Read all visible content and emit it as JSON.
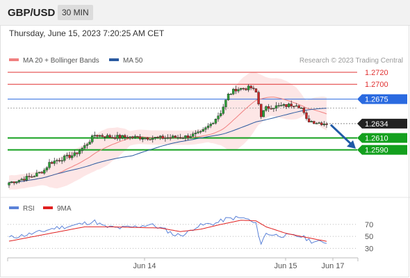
{
  "header": {
    "symbol": "GBP/USD",
    "timeframe": "30 MIN"
  },
  "datetime": "Thursday, June 15, 2023 7:20:25 AM CET",
  "chart_data": [
    {
      "type": "candlestick",
      "legend": [
        {
          "name": "MA 20 + Bollinger Bands",
          "color": "#f08080"
        },
        {
          "name": "MA 50",
          "color": "#2a5aa0"
        }
      ],
      "legend_placement": "top-left",
      "source": "Research © 2023 Trading Central",
      "x_ticks": [
        "Jun 14",
        "Jun 15",
        "Jun 17"
      ],
      "ylim": [
        1.2515,
        1.2755
      ],
      "current_price": "1.2634",
      "levels": [
        {
          "label": "1.2720",
          "value": 1.272,
          "color": "#e03030",
          "style": "line"
        },
        {
          "label": "1.2700",
          "value": 1.27,
          "color": "#e03030",
          "style": "line"
        },
        {
          "label": "1.2675",
          "value": 1.2675,
          "color": "#2a6ae0",
          "style": "fill"
        },
        {
          "label": "1.2610",
          "value": 1.261,
          "color": "#13a01e",
          "style": "fill"
        },
        {
          "label": "1.2590",
          "value": 1.259,
          "color": "#13a01e",
          "style": "fill"
        }
      ],
      "projection": {
        "from": 1.2632,
        "to": 1.2592,
        "color": "#1f5aa6"
      },
      "close_anchors": [
        [
          0,
          1.2535
        ],
        [
          6,
          1.2542
        ],
        [
          10,
          1.2547
        ],
        [
          14,
          1.2556
        ],
        [
          16,
          1.2568
        ],
        [
          20,
          1.2574
        ],
        [
          26,
          1.2582
        ],
        [
          30,
          1.2596
        ],
        [
          34,
          1.2615
        ],
        [
          40,
          1.2612
        ],
        [
          50,
          1.2611
        ],
        [
          60,
          1.261
        ],
        [
          70,
          1.2612
        ],
        [
          76,
          1.2618
        ],
        [
          80,
          1.2633
        ],
        [
          84,
          1.2653
        ],
        [
          87,
          1.2682
        ],
        [
          90,
          1.2692
        ],
        [
          96,
          1.2694
        ],
        [
          98,
          1.2686
        ],
        [
          100,
          1.2648
        ],
        [
          102,
          1.266
        ],
        [
          104,
          1.2662
        ],
        [
          110,
          1.2664
        ],
        [
          114,
          1.2667
        ],
        [
          116,
          1.266
        ],
        [
          118,
          1.264
        ],
        [
          122,
          1.2636
        ],
        [
          126,
          1.2634
        ]
      ]
    },
    {
      "type": "line",
      "legend": [
        {
          "name": "RSI",
          "color": "#5b82d8"
        },
        {
          "name": "9MA",
          "color": "#e02020"
        }
      ],
      "legend_placement": "top-left",
      "ylim": [
        20,
        85
      ],
      "y_ticks": [
        "70",
        "50",
        "30"
      ],
      "rsi_anchors": [
        [
          0,
          48
        ],
        [
          6,
          52
        ],
        [
          12,
          57
        ],
        [
          18,
          64
        ],
        [
          24,
          67
        ],
        [
          30,
          72
        ],
        [
          34,
          75
        ],
        [
          38,
          66
        ],
        [
          44,
          64
        ],
        [
          50,
          66
        ],
        [
          56,
          70
        ],
        [
          62,
          61
        ],
        [
          66,
          52
        ],
        [
          70,
          54
        ],
        [
          74,
          66
        ],
        [
          78,
          70
        ],
        [
          82,
          72
        ],
        [
          86,
          79
        ],
        [
          90,
          81
        ],
        [
          94,
          80
        ],
        [
          98,
          70
        ],
        [
          100,
          38
        ],
        [
          102,
          55
        ],
        [
          106,
          52
        ],
        [
          112,
          51
        ],
        [
          116,
          50
        ],
        [
          120,
          42
        ],
        [
          124,
          40
        ],
        [
          127,
          41
        ]
      ],
      "ma9_anchors": [
        [
          0,
          42
        ],
        [
          10,
          50
        ],
        [
          20,
          58
        ],
        [
          30,
          66
        ],
        [
          40,
          66
        ],
        [
          50,
          65
        ],
        [
          60,
          64
        ],
        [
          68,
          58
        ],
        [
          76,
          62
        ],
        [
          84,
          70
        ],
        [
          92,
          77
        ],
        [
          98,
          76
        ],
        [
          102,
          66
        ],
        [
          110,
          55
        ],
        [
          116,
          50
        ],
        [
          122,
          45
        ],
        [
          127,
          41
        ]
      ]
    }
  ]
}
